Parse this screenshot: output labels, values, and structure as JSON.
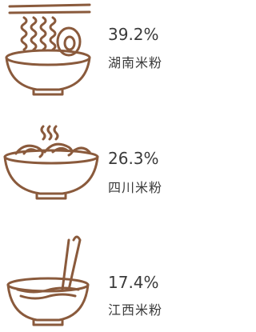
{
  "chart_data": {
    "type": "pictogram",
    "categories": [
      "湖南米粉",
      "四川米粉",
      "江西米粉"
    ],
    "values": [
      39.2,
      26.3,
      17.4
    ],
    "value_labels": [
      "39.2%",
      "26.3%",
      "17.4%"
    ],
    "color": "#8a5a3c"
  }
}
